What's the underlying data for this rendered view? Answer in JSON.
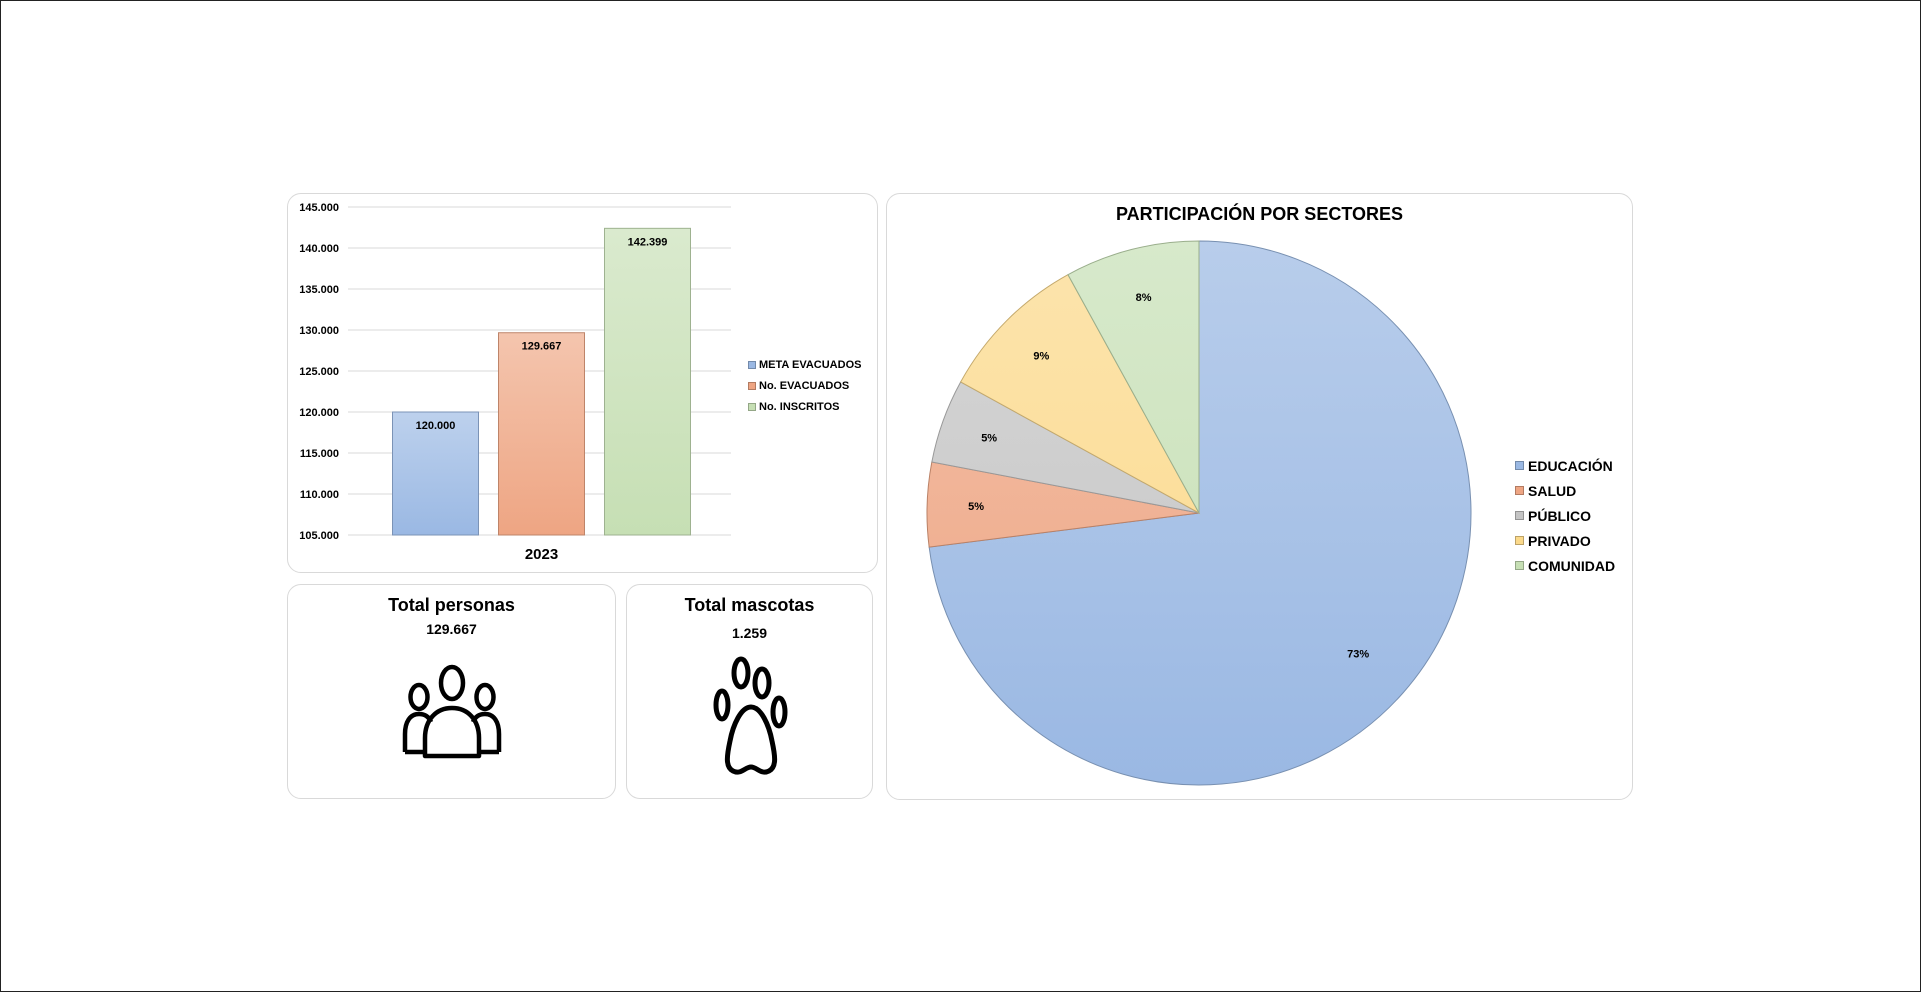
{
  "colors": {
    "meta": "#9ab8e3",
    "evacuados": "#eea583",
    "inscritos": "#c6dfb4",
    "educacion": "#9ab8e3",
    "salud": "#eea583",
    "publico": "#c4c4c4",
    "privado": "#fbd98a",
    "comunidad": "#c6dfb4"
  },
  "chart_data": [
    {
      "type": "bar",
      "categories": [
        "2023"
      ],
      "series": [
        {
          "name": "META EVACUADOS",
          "values": [
            120000
          ],
          "label": "120.000",
          "color": "#9ab8e3"
        },
        {
          "name": "No. EVACUADOS",
          "values": [
            129667
          ],
          "label": "129.667",
          "color": "#eea583"
        },
        {
          "name": "No. INSCRITOS",
          "values": [
            142399
          ],
          "label": "142.399",
          "color": "#c6dfb4"
        }
      ],
      "ylim": [
        105000,
        145000
      ],
      "yticks": [
        {
          "value": 145000,
          "label": "145.000"
        },
        {
          "value": 140000,
          "label": "140.000"
        },
        {
          "value": 135000,
          "label": "135.000"
        },
        {
          "value": 130000,
          "label": "130.000"
        },
        {
          "value": 125000,
          "label": "125.000"
        },
        {
          "value": 120000,
          "label": "120.000"
        },
        {
          "value": 115000,
          "label": "115.000"
        },
        {
          "value": 110000,
          "label": "110.000"
        },
        {
          "value": 105000,
          "label": "105.000"
        }
      ],
      "grid": true,
      "legend_position": "right"
    },
    {
      "type": "pie",
      "title": "PARTICIPACIÓN POR SECTORES",
      "slices": [
        {
          "name": "EDUCACIÓN",
          "value": 73,
          "label": "73%",
          "color": "#9ab8e3"
        },
        {
          "name": "SALUD",
          "value": 5,
          "label": "5%",
          "color": "#eea583"
        },
        {
          "name": "PÚBLICO",
          "value": 5,
          "label": "5%",
          "color": "#c4c4c4"
        },
        {
          "name": "PRIVADO",
          "value": 9,
          "label": "9%",
          "color": "#fbd98a"
        },
        {
          "name": "COMUNIDAD",
          "value": 8,
          "label": "8%",
          "color": "#c6dfb4"
        }
      ],
      "legend_position": "right"
    }
  ],
  "kpis": {
    "persons": {
      "title": "Total personas",
      "value": "129.667",
      "icon": "people-icon"
    },
    "pets": {
      "title": "Total mascotas",
      "value": "1.259",
      "icon": "paw-icon"
    }
  }
}
